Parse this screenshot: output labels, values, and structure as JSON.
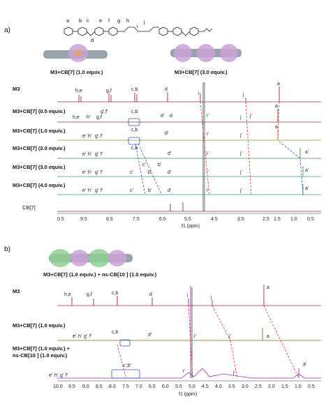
{
  "panel_a": {
    "label": "a)",
    "atom_letters": [
      "a",
      "b",
      "c",
      "d",
      "e",
      "f",
      "g",
      "h",
      "i",
      "j"
    ],
    "complex_left": "M3+CB[7] (1.0 equiv.)",
    "complex_right": "M3+CB[7] (3.0 equiv.)",
    "row_labels": [
      "M3",
      "M3+CB[7] (0.5 equiv.)",
      "M3+CB[7] (1.0 equiv.)",
      "M3+CB[7] (2.0 equiv.)",
      "M3+CB[7] (3.0 equiv.)",
      "M3+CB[7] (4.0 equiv.)",
      "CB[7]"
    ],
    "peak_labels": [
      {
        "row": 0,
        "items": [
          "h,e",
          "g,f",
          "c,b",
          "d",
          "i",
          "j",
          "a"
        ]
      },
      {
        "row": 1,
        "items": [
          "h,e",
          "h'",
          "g,f",
          "g',f'",
          "c,b",
          "d'",
          "d",
          "i'",
          "j",
          "j'",
          "a"
        ]
      },
      {
        "row": 2,
        "items": [
          "e'",
          "h'",
          "g'",
          "f'",
          "c,b",
          "d'",
          "i'",
          "j'",
          "a"
        ]
      },
      {
        "row": 3,
        "items": [
          "e'",
          "h'",
          "g'",
          "f'",
          "c,b",
          "c'",
          "b'",
          "d'",
          "i'",
          "j'",
          "a'"
        ]
      },
      {
        "row": 4,
        "items": [
          "e'",
          "h'",
          "g'",
          "f'",
          "c'",
          "b'",
          "d'",
          "i'",
          "j'",
          "a'"
        ]
      },
      {
        "row": 5,
        "items": [
          "e'",
          "h'",
          "g'",
          "f'",
          "c'",
          "b'",
          "d'",
          "i'",
          "j'",
          "a'"
        ]
      }
    ],
    "x_ticks": [
      "0.5",
      "9.5",
      "8.5",
      "7.5",
      "6.5",
      "5.5",
      "4.5",
      "3.5",
      "2.5",
      "1.5",
      "1.0",
      "0.5"
    ],
    "x_label": "f1 (ppm)"
  },
  "panel_b": {
    "label": "b)",
    "complex_label": "M3+CB[7] (1.0 equiv.) + ns-CB[10 ] (1.0 equiv.)",
    "row_labels": [
      "M3",
      "M3+CB[7] (1.0 equiv.)",
      "M3+CB[7] (1.0 equiv.) +",
      "ns-CB[10 ] (1.0 equiv.)"
    ],
    "peak_labels": [
      {
        "row": 0,
        "items": [
          "h,e",
          "g,f",
          "c,b",
          "d",
          "i",
          "j",
          "a"
        ]
      },
      {
        "row": 1,
        "items": [
          "e'",
          "h'",
          "g'",
          "f'",
          "c,b",
          "d'",
          "i'",
          "j'",
          "a"
        ]
      },
      {
        "row": 2,
        "items": [
          "e'",
          "h'",
          "g'",
          "f'",
          "c',b'",
          "i'",
          "j'",
          "a'"
        ]
      }
    ],
    "x_ticks": [
      "10.0",
      "9.5",
      "9.0",
      "8.5",
      "8.0",
      "7.5",
      "7.0",
      "6.5",
      "6.0",
      "5.5",
      "5.0",
      "4.5",
      "4.0",
      "3.5",
      "3.0",
      "2.5",
      "2.0",
      "1.5",
      "1.0",
      "0.5"
    ],
    "x_label": "f1 (ppm)"
  },
  "colors": {
    "row_a0": "#b0203a",
    "row_a1": "#8a3030",
    "row_a2": "#7c9a3c",
    "row_a3": "#3c8a3c",
    "row_a4": "#2aa080",
    "row_a5": "#2a9a9a",
    "row_a6": "#8a1f6a",
    "row_b0": "#b0203a",
    "row_b1": "#5a7a30",
    "row_b2": "#8a3aa0",
    "dash_red": "#e03030",
    "dash_blue": "#3050c8"
  }
}
